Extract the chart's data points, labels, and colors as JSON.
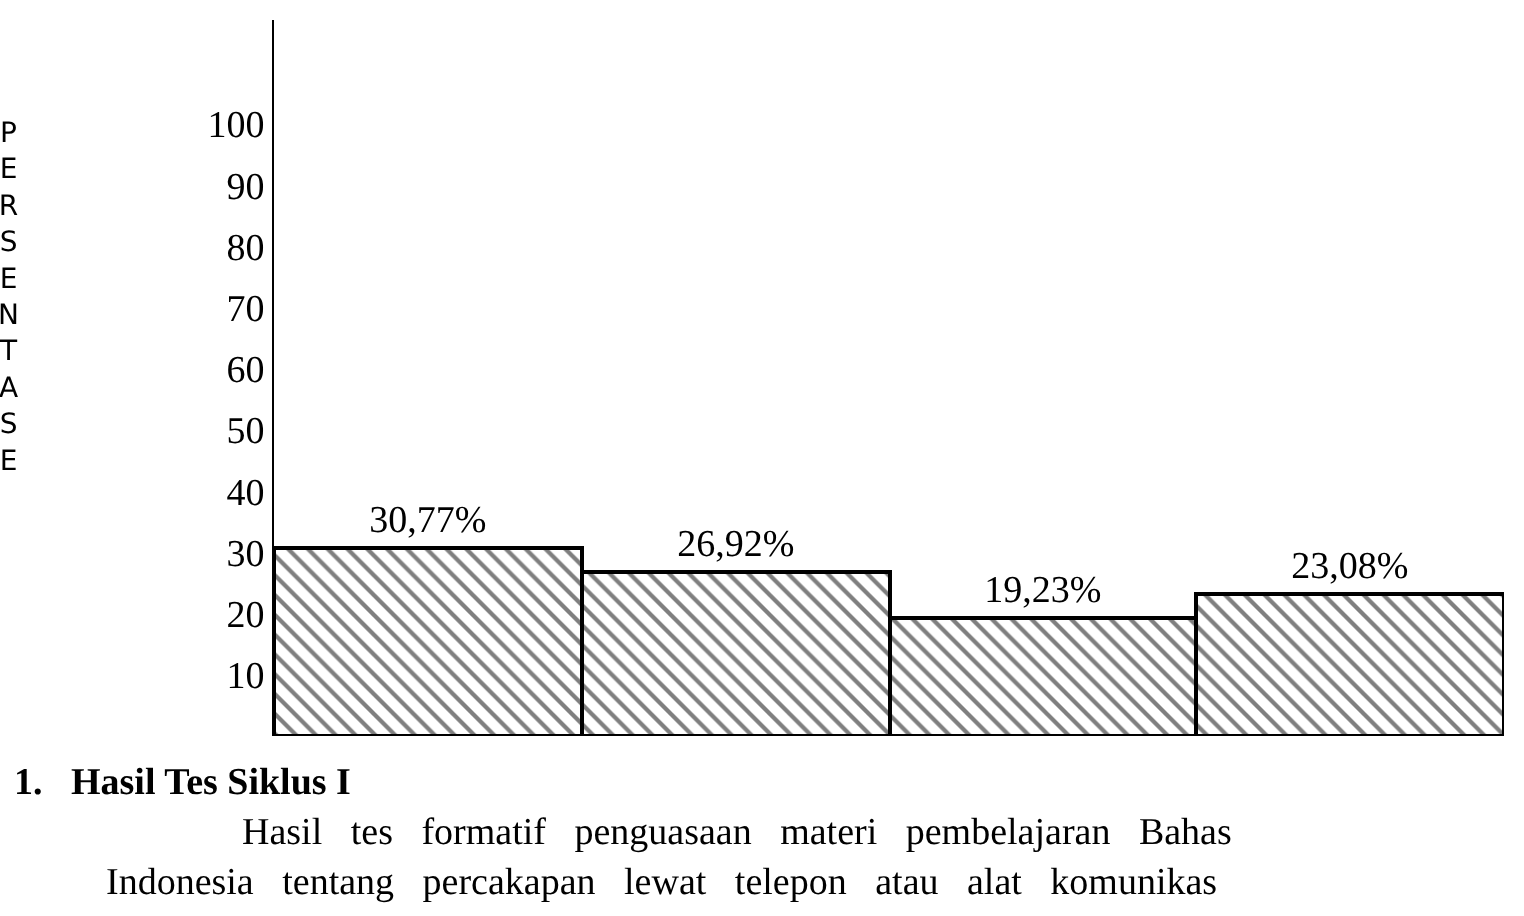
{
  "chart_data": {
    "type": "bar",
    "ylabel": "PERSENTASE",
    "categories": [
      null,
      null,
      null,
      null
    ],
    "values": [
      30.77,
      26.92,
      19.23,
      23.08
    ],
    "value_labels": [
      "30,77%",
      "26,92%",
      "19,23%",
      "23,08%"
    ],
    "color": "#000000",
    "ylim": [
      0,
      117
    ],
    "yticks": [
      10,
      20,
      30,
      40,
      50,
      60,
      70,
      80,
      90,
      100
    ],
    "legend": false,
    "annotations": [
      "1.   Hasil Tes Siklus I",
      "Hasil   tes   formatif   penguasaan   materi   pembelajaran   Bahas",
      "Indonesia   tentang   percakapan   lewat   telepon   atau   alat   komunikas"
    ]
  }
}
